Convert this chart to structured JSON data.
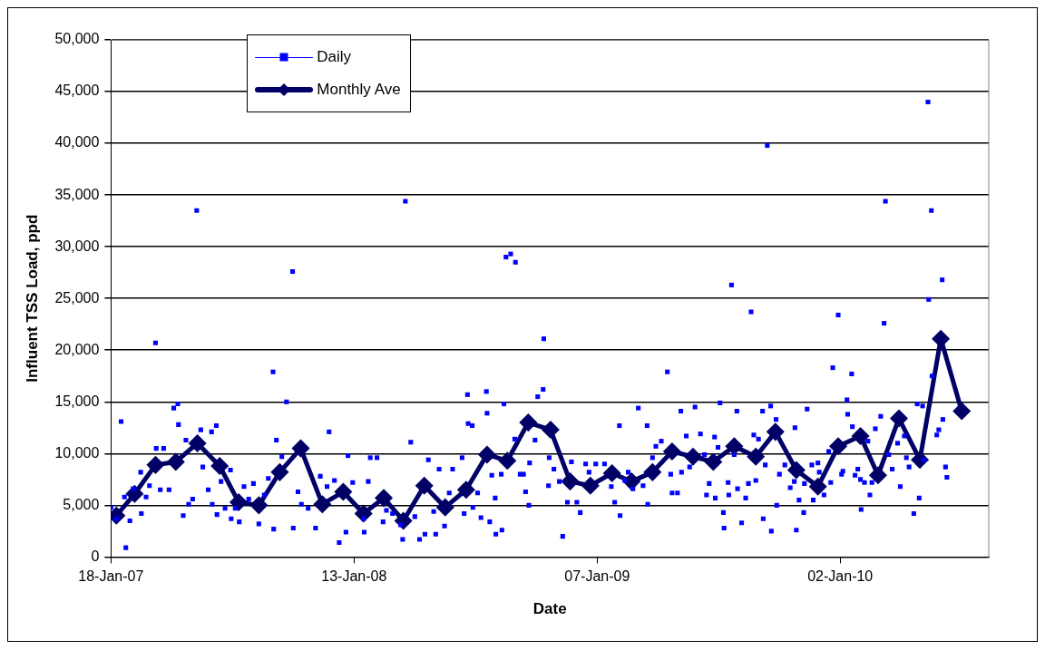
{
  "chart_data": {
    "type": "scatter",
    "xlabel": "Date",
    "ylabel": "Influent TSS Load, ppd",
    "xlim": [
      "2007-01-18",
      "2010-08-10"
    ],
    "xticks": [
      {
        "value": "2007-01-18",
        "label": "18-Jan-07"
      },
      {
        "value": "2008-01-13",
        "label": "13-Jan-08"
      },
      {
        "value": "2009-01-07",
        "label": "07-Jan-09"
      },
      {
        "value": "2010-01-02",
        "label": "02-Jan-10"
      }
    ],
    "ylim": [
      0,
      50000
    ],
    "yticks": [
      {
        "value": 0,
        "label": "0"
      },
      {
        "value": 5000,
        "label": "5,000"
      },
      {
        "value": 10000,
        "label": "10,000"
      },
      {
        "value": 15000,
        "label": "15,000"
      },
      {
        "value": 20000,
        "label": "20,000"
      },
      {
        "value": 25000,
        "label": "25,000"
      },
      {
        "value": 30000,
        "label": "30,000"
      },
      {
        "value": 35000,
        "label": "35,000"
      },
      {
        "value": 40000,
        "label": "40,000"
      },
      {
        "value": 45000,
        "label": "45,000"
      },
      {
        "value": 50000,
        "label": "50,000"
      }
    ],
    "grid": "y",
    "legend": "top left",
    "series": [
      {
        "name": "Daily",
        "type": "scatter",
        "marker": "square",
        "color": "#0000ff",
        "x": [
          "2007-01-18",
          "2007-01-26",
          "2007-02-02",
          "2007-02-07",
          "2007-02-09",
          "2007-02-15",
          "2007-02-20",
          "2007-03-03",
          "2007-03-04",
          "2007-03-11",
          "2007-03-16",
          "2007-03-25",
          "2007-03-26",
          "2007-04-01",
          "2007-04-06",
          "2007-04-14",
          "2007-04-21",
          "2007-04-27",
          "2007-04-28",
          "2007-05-05",
          "2007-05-09",
          "2007-05-13",
          "2007-05-19",
          "2007-05-25",
          "2007-05-31",
          "2007-06-03",
          "2007-06-11",
          "2007-06-16",
          "2007-06-17",
          "2007-06-23",
          "2007-06-24",
          "2007-06-30",
          "2007-07-06",
          "2007-07-14",
          "2007-07-15",
          "2007-07-21",
          "2007-07-27",
          "2007-08-03",
          "2007-08-10",
          "2007-08-17",
          "2007-08-25",
          "2007-09-02",
          "2007-09-08",
          "2007-09-15",
          "2007-09-16",
          "2007-09-20",
          "2007-09-28",
          "2007-10-05",
          "2007-10-14",
          "2007-10-15",
          "2007-10-22",
          "2007-10-27",
          "2007-11-06",
          "2007-11-17",
          "2007-11-24",
          "2007-12-04",
          "2007-12-07",
          "2007-12-15",
          "2007-12-22",
          "2008-01-01",
          "2008-01-04",
          "2008-01-11",
          "2008-01-27",
          "2008-01-28",
          "2008-02-03",
          "2008-02-06",
          "2008-02-16",
          "2008-02-25",
          "2008-03-01",
          "2008-03-10",
          "2008-03-22",
          "2008-03-25",
          "2008-03-29",
          "2008-04-06",
          "2008-04-12",
          "2008-04-19",
          "2008-04-27",
          "2008-05-02",
          "2008-05-10",
          "2008-05-13",
          "2008-05-18",
          "2008-05-26",
          "2008-06-02",
          "2008-06-07",
          "2008-06-21",
          "2008-06-24",
          "2008-06-29",
          "2008-06-30",
          "2008-07-06",
          "2008-07-07",
          "2008-07-14",
          "2008-07-19",
          "2008-07-27",
          "2008-07-28",
          "2008-08-01",
          "2008-08-04",
          "2008-08-09",
          "2008-08-10",
          "2008-08-18",
          "2008-08-19",
          "2008-08-22",
          "2008-08-25",
          "2008-09-01",
          "2008-09-07",
          "2008-09-08",
          "2008-09-15",
          "2008-09-20",
          "2008-09-23",
          "2008-09-28",
          "2008-09-29",
          "2008-10-07",
          "2008-10-11",
          "2008-10-19",
          "2008-10-20",
          "2008-10-27",
          "2008-10-28",
          "2008-11-04",
          "2008-11-12",
          "2008-11-17",
          "2008-11-24",
          "2008-11-30",
          "2008-12-08",
          "2008-12-13",
          "2008-12-21",
          "2008-12-26",
          "2009-01-05",
          "2009-01-18",
          "2009-01-28",
          "2009-02-02",
          "2009-02-09",
          "2009-02-10",
          "2009-02-17",
          "2009-02-22",
          "2009-03-01",
          "2009-03-09",
          "2009-03-16",
          "2009-03-22",
          "2009-03-23",
          "2009-03-30",
          "2009-04-04",
          "2009-04-12",
          "2009-04-21",
          "2009-04-26",
          "2009-04-28",
          "2009-05-06",
          "2009-05-11",
          "2009-05-12",
          "2009-05-19",
          "2009-05-24",
          "2009-06-01",
          "2009-06-09",
          "2009-06-15",
          "2009-06-18",
          "2009-06-22",
          "2009-06-30",
          "2009-07-01",
          "2009-07-05",
          "2009-07-08",
          "2009-07-13",
          "2009-07-14",
          "2009-07-20",
          "2009-07-21",
          "2009-07-25",
          "2009-07-29",
          "2009-08-02",
          "2009-08-03",
          "2009-08-09",
          "2009-08-15",
          "2009-08-19",
          "2009-08-23",
          "2009-08-27",
          "2009-08-30",
          "2009-09-03",
          "2009-09-09",
          "2009-09-10",
          "2009-09-13",
          "2009-09-16",
          "2009-09-21",
          "2009-09-22",
          "2009-09-29",
          "2009-09-30",
          "2009-10-04",
          "2009-10-12",
          "2009-10-20",
          "2009-10-26",
          "2009-10-27",
          "2009-10-29",
          "2009-11-02",
          "2009-11-09",
          "2009-11-10",
          "2009-11-14",
          "2009-11-21",
          "2009-11-23",
          "2009-11-30",
          "2009-12-02",
          "2009-12-09",
          "2009-12-16",
          "2009-12-19",
          "2009-12-22",
          "2009-12-30",
          "2010-01-04",
          "2010-01-06",
          "2010-01-12",
          "2010-01-13",
          "2010-01-19",
          "2010-01-20",
          "2010-01-24",
          "2010-01-28",
          "2010-02-01",
          "2010-02-02",
          "2010-02-07",
          "2010-02-12",
          "2010-02-15",
          "2010-02-18",
          "2010-02-23",
          "2010-03-03",
          "2010-03-08",
          "2010-03-10",
          "2010-03-15",
          "2010-03-20",
          "2010-03-28",
          "2010-04-01",
          "2010-04-07",
          "2010-04-10",
          "2010-04-14",
          "2010-04-21",
          "2010-04-26",
          "2010-04-29",
          "2010-05-04",
          "2010-05-06",
          "2010-05-12",
          "2010-05-13",
          "2010-05-17",
          "2010-05-18",
          "2010-05-25",
          "2010-05-28",
          "2010-06-02",
          "2010-06-03",
          "2010-06-07",
          "2010-06-09"
        ],
        "values": [
          4800,
          3700,
          13100,
          5800,
          900,
          3500,
          6600,
          8200,
          4200,
          5800,
          6900,
          20700,
          10500,
          6500,
          10500,
          6500,
          14400,
          14800,
          12800,
          4000,
          11300,
          5100,
          5600,
          33500,
          12300,
          8700,
          6500,
          12100,
          5100,
          12700,
          4100,
          7300,
          4700,
          8400,
          3700,
          4700,
          3400,
          6800,
          5600,
          7100,
          3200,
          6000,
          7600,
          17900,
          2700,
          11300,
          9700,
          15000,
          27600,
          2800,
          6300,
          5100,
          4700,
          2800,
          7800,
          6800,
          12100,
          7400,
          1400,
          2400,
          9800,
          7200,
          3700,
          2400,
          7300,
          9600,
          9600,
          3400,
          4500,
          4200,
          3100,
          1700,
          34400,
          11100,
          3900,
          1700,
          2200,
          9400,
          4400,
          2200,
          8500,
          3000,
          6200,
          8500,
          9600,
          4200,
          15700,
          12900,
          12700,
          4800,
          6200,
          3800,
          16000,
          13900,
          3400,
          7900,
          5700,
          2200,
          8000,
          2600,
          14800,
          29000,
          29300,
          11400,
          28500,
          8000,
          8000,
          6300,
          5000,
          9100,
          11300,
          15500,
          16200,
          21100,
          6900,
          9600,
          8500,
          7300,
          2000,
          5300,
          9200,
          5300,
          4300,
          9000,
          8200,
          9000,
          9000,
          6800,
          5300,
          12700,
          4000,
          7400,
          8200,
          6600,
          14400,
          6900,
          12700,
          5100,
          9600,
          10700,
          11200,
          17900,
          8000,
          6200,
          6200,
          14100,
          8200,
          11700,
          8700,
          14500,
          11900,
          9900,
          6000,
          7100,
          11600,
          5700,
          10600,
          14900,
          4300,
          2800,
          7200,
          6000,
          26300,
          9900,
          14100,
          6600,
          3300,
          5700,
          7100,
          23700,
          11800,
          7400,
          11400,
          14100,
          3700,
          8900,
          39800,
          14600,
          2500,
          13300,
          5000,
          8000,
          8900,
          6700,
          7300,
          12500,
          2600,
          5500,
          4300,
          7100,
          14300,
          8900,
          5500,
          9100,
          8200,
          6000,
          10200,
          7200,
          18300,
          23400,
          8000,
          8300,
          15200,
          13800,
          17700,
          12600,
          7900,
          8500,
          7500,
          4600,
          7200,
          11200,
          6000,
          7200,
          12400,
          13600,
          22600,
          34400,
          9900,
          8500,
          11000,
          6800,
          11700,
          9600,
          8700,
          4200,
          14800,
          5700,
          14600,
          9400,
          44000,
          24900,
          33500,
          17500,
          11800,
          12300,
          26800,
          13300,
          8700,
          7700
        ]
      },
      {
        "name": "Monthly Ave",
        "type": "line",
        "marker": "diamond",
        "color": "#000066",
        "x": [
          "2007-01-26",
          "2007-02-22",
          "2007-03-25",
          "2007-04-24",
          "2007-05-26",
          "2007-06-28",
          "2007-07-26",
          "2007-08-25",
          "2007-09-25",
          "2007-10-26",
          "2007-11-27",
          "2007-12-28",
          "2008-01-27",
          "2008-02-26",
          "2008-03-26",
          "2008-04-26",
          "2008-05-27",
          "2008-06-27",
          "2008-07-28",
          "2008-08-27",
          "2008-09-27",
          "2008-10-30",
          "2008-11-28",
          "2008-12-28",
          "2009-01-29",
          "2009-02-27",
          "2009-03-30",
          "2009-04-28",
          "2009-05-29",
          "2009-06-28",
          "2009-07-29",
          "2009-08-30",
          "2009-09-28",
          "2009-10-29",
          "2009-11-30",
          "2009-12-30",
          "2010-02-01",
          "2010-02-27",
          "2010-03-30",
          "2010-04-30",
          "2010-05-31",
          "2010-07-01"
        ],
        "values": [
          4000,
          6100,
          8900,
          9200,
          11000,
          8800,
          5300,
          5000,
          8200,
          10500,
          5100,
          6300,
          4200,
          5700,
          3500,
          6900,
          4800,
          6500,
          9900,
          9300,
          13000,
          12300,
          7300,
          6900,
          8100,
          7300,
          8200,
          10200,
          9700,
          9200,
          10700,
          9700,
          12100,
          8400,
          6800,
          10700,
          11700,
          7900,
          13400,
          9400,
          21100,
          14100
        ]
      }
    ]
  }
}
